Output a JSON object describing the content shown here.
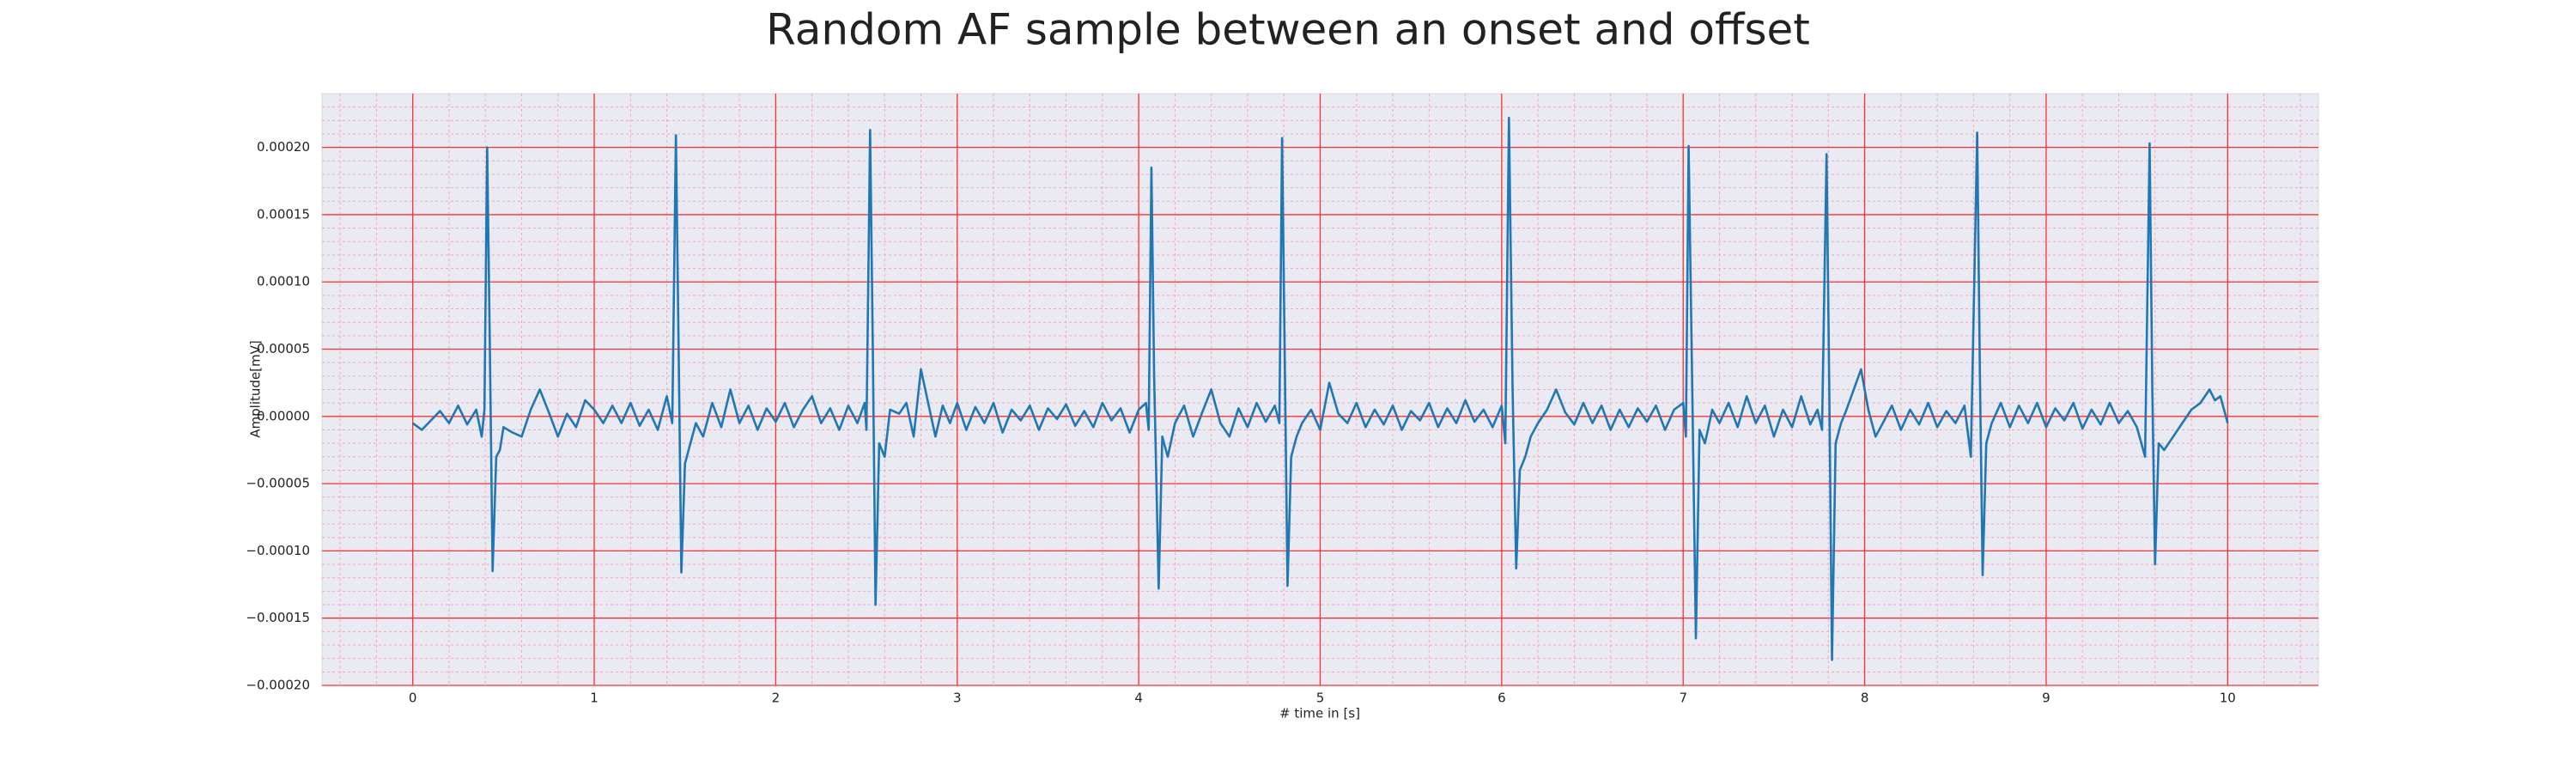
{
  "chart_data": {
    "type": "line",
    "title": "Random AF sample between an onset and offset",
    "x_label": "# time in [s]",
    "y_label": "Amplitude[mV]",
    "color": "#1f77b4",
    "background": "#eaeaf2",
    "grid": true,
    "grid_color": "#ff3030",
    "minor_grid": true,
    "minor_grid_color": "#f4a6b8",
    "xlim": [
      -0.5,
      10.5
    ],
    "xticks": [
      0,
      1,
      2,
      3,
      4,
      5,
      6,
      7,
      8,
      9,
      10
    ],
    "ylim": [
      -0.0002,
      0.00024
    ],
    "yticks": [
      {
        "value": -0.0002,
        "label": "−0.00020"
      },
      {
        "value": -0.00015,
        "label": "−0.00015"
      },
      {
        "value": -0.0001,
        "label": "−0.00010"
      },
      {
        "value": -5e-05,
        "label": "−0.00005"
      },
      {
        "value": 0,
        "label": "0.00000"
      },
      {
        "value": 5e-05,
        "label": "0.00005"
      },
      {
        "value": 0.0001,
        "label": "0.00010"
      },
      {
        "value": 0.00015,
        "label": "0.00015"
      },
      {
        "value": 0.0002,
        "label": "0.00020"
      }
    ],
    "x": [
      0.0,
      0.05,
      0.1,
      0.15,
      0.2,
      0.25,
      0.3,
      0.35,
      0.38,
      0.395,
      0.41,
      0.425,
      0.44,
      0.46,
      0.48,
      0.5,
      0.55,
      0.6,
      0.65,
      0.7,
      0.75,
      0.8,
      0.85,
      0.9,
      0.95,
      1.0,
      1.05,
      1.1,
      1.15,
      1.2,
      1.25,
      1.3,
      1.35,
      1.4,
      1.43,
      1.45,
      1.465,
      1.48,
      1.5,
      1.53,
      1.56,
      1.6,
      1.65,
      1.7,
      1.75,
      1.8,
      1.85,
      1.9,
      1.95,
      2.0,
      2.05,
      2.1,
      2.15,
      2.2,
      2.25,
      2.3,
      2.35,
      2.4,
      2.45,
      2.49,
      2.5,
      2.52,
      2.535,
      2.55,
      2.57,
      2.6,
      2.63,
      2.68,
      2.72,
      2.76,
      2.8,
      2.84,
      2.88,
      2.92,
      2.96,
      3.0,
      3.05,
      3.1,
      3.15,
      3.2,
      3.25,
      3.3,
      3.35,
      3.4,
      3.45,
      3.5,
      3.55,
      3.6,
      3.65,
      3.7,
      3.75,
      3.8,
      3.85,
      3.9,
      3.95,
      4.0,
      4.04,
      4.055,
      4.07,
      4.085,
      4.11,
      4.13,
      4.16,
      4.2,
      4.25,
      4.3,
      4.35,
      4.4,
      4.45,
      4.5,
      4.55,
      4.6,
      4.65,
      4.7,
      4.75,
      4.775,
      4.79,
      4.805,
      4.82,
      4.84,
      4.87,
      4.9,
      4.95,
      5.0,
      5.05,
      5.1,
      5.15,
      5.2,
      5.25,
      5.3,
      5.35,
      5.4,
      5.45,
      5.5,
      5.55,
      5.6,
      5.65,
      5.7,
      5.75,
      5.8,
      5.85,
      5.9,
      5.95,
      6.0,
      6.02,
      6.04,
      6.06,
      6.08,
      6.1,
      6.13,
      6.16,
      6.2,
      6.25,
      6.3,
      6.35,
      6.4,
      6.45,
      6.5,
      6.55,
      6.6,
      6.65,
      6.7,
      6.75,
      6.8,
      6.85,
      6.9,
      6.95,
      7.0,
      7.015,
      7.03,
      7.05,
      7.07,
      7.09,
      7.12,
      7.16,
      7.2,
      7.25,
      7.3,
      7.35,
      7.4,
      7.45,
      7.5,
      7.55,
      7.6,
      7.65,
      7.7,
      7.74,
      7.765,
      7.79,
      7.805,
      7.82,
      7.84,
      7.87,
      7.9,
      7.94,
      7.98,
      8.02,
      8.06,
      8.1,
      8.15,
      8.2,
      8.25,
      8.3,
      8.35,
      8.4,
      8.45,
      8.5,
      8.55,
      8.585,
      8.62,
      8.635,
      8.65,
      8.67,
      8.7,
      8.75,
      8.8,
      8.85,
      8.9,
      8.95,
      9.0,
      9.05,
      9.1,
      9.15,
      9.2,
      9.25,
      9.3,
      9.35,
      9.4,
      9.45,
      9.5,
      9.545,
      9.57,
      9.585,
      9.6,
      9.62,
      9.65,
      9.7,
      9.75,
      9.8,
      9.85,
      9.9,
      9.93,
      9.96,
      10.0
    ],
    "values": [
      -5e-06,
      -1e-05,
      -3e-06,
      4e-06,
      -5e-06,
      8e-06,
      -6e-06,
      5e-06,
      -1.5e-05,
      5e-06,
      0.0002,
      5e-05,
      -0.000115,
      -3e-05,
      -2.5e-05,
      -8e-06,
      -1.2e-05,
      -1.5e-05,
      5e-06,
      2e-05,
      3e-06,
      -1.5e-05,
      2e-06,
      -8e-06,
      1.2e-05,
      5e-06,
      -5e-06,
      8e-06,
      -5e-06,
      1e-05,
      -7e-06,
      5e-06,
      -1e-05,
      1.5e-05,
      -5e-06,
      0.000209,
      5e-05,
      -0.000116,
      -3.5e-05,
      -2e-05,
      -5e-06,
      -1.5e-05,
      1e-05,
      -8e-06,
      2e-05,
      -5e-06,
      8e-06,
      -1e-05,
      6e-06,
      -4e-06,
      1e-05,
      -8e-06,
      5e-06,
      1.5e-05,
      -5e-06,
      6e-06,
      -1e-05,
      8e-06,
      -5e-06,
      1e-05,
      -1e-05,
      0.000213,
      5e-05,
      -0.00014,
      -2e-05,
      -3e-05,
      5e-06,
      2e-06,
      1e-05,
      -1.5e-05,
      3.5e-05,
      1e-05,
      -1.5e-05,
      8e-06,
      -5e-06,
      1e-05,
      -1e-05,
      7e-06,
      -5e-06,
      1e-05,
      -1.2e-05,
      5e-06,
      -3e-06,
      8e-06,
      -1e-05,
      6e-06,
      -2e-06,
      9e-06,
      -7e-06,
      4e-06,
      -8e-06,
      1e-05,
      -3e-06,
      6e-06,
      -1.2e-05,
      5e-06,
      1e-05,
      -1e-05,
      0.000185,
      3e-05,
      -0.000128,
      -1.5e-05,
      -3e-05,
      -5e-06,
      8e-06,
      -1.5e-05,
      3e-06,
      2e-05,
      -5e-06,
      -1.5e-05,
      6e-06,
      -8e-06,
      1e-05,
      -4e-06,
      8e-06,
      -5e-06,
      0.000207,
      4e-05,
      -0.000126,
      -3e-05,
      -1.5e-05,
      -5e-06,
      5e-06,
      -1e-05,
      2.5e-05,
      2e-06,
      -5e-06,
      1e-05,
      -8e-06,
      5e-06,
      -6e-06,
      8e-06,
      -1e-05,
      4e-06,
      -3e-06,
      1e-05,
      -8e-06,
      6e-06,
      -5e-06,
      1.2e-05,
      -4e-06,
      5e-06,
      -8e-06,
      8e-06,
      -2e-05,
      0.000222,
      2e-05,
      -0.000113,
      -4e-05,
      -3e-05,
      -1.5e-05,
      -5e-06,
      5e-06,
      2e-05,
      3e-06,
      -6e-06,
      1e-05,
      -5e-06,
      8e-06,
      -1e-05,
      5e-06,
      -8e-06,
      6e-06,
      -4e-06,
      8e-06,
      -1e-05,
      5e-06,
      1e-05,
      -1.5e-05,
      0.000201,
      2e-05,
      -0.000165,
      -1e-05,
      -2e-05,
      5e-06,
      -5e-06,
      1e-05,
      -8e-06,
      1.5e-05,
      -5e-06,
      8e-06,
      -1.5e-05,
      5e-06,
      -8e-06,
      1.5e-05,
      -6e-06,
      5e-06,
      -1e-05,
      0.000195,
      2e-05,
      -0.000181,
      -2e-05,
      -5e-06,
      5e-06,
      2e-05,
      3.5e-05,
      5e-06,
      -1.5e-05,
      -5e-06,
      8e-06,
      -1e-05,
      5e-06,
      -6e-06,
      1e-05,
      -8e-06,
      4e-06,
      -5e-06,
      8e-06,
      -3e-05,
      0.000211,
      3e-05,
      -0.000118,
      -2e-05,
      -5e-06,
      1e-05,
      -8e-06,
      8e-06,
      -5e-06,
      1e-05,
      -8e-06,
      6e-06,
      -3e-06,
      1e-05,
      -9e-06,
      5e-06,
      -6e-06,
      1e-05,
      -5e-06,
      4e-06,
      -8e-06,
      -3e-05,
      0.000203,
      2e-05,
      -0.00011,
      -2e-05,
      -2.5e-05,
      -1.5e-05,
      -5e-06,
      5e-06,
      1e-05,
      2e-05,
      1.2e-05,
      1.5e-05,
      -5e-06
    ]
  }
}
